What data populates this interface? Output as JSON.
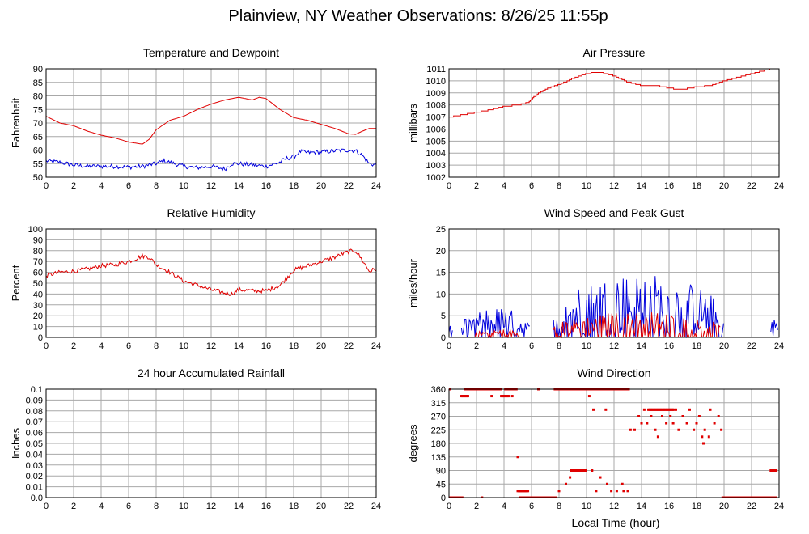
{
  "title": "Plainview, NY Weather Observations: 8/26/25 11:55p",
  "x_label": "Local Time (hour)",
  "chart_data": [
    {
      "type": "line",
      "title": "Temperature and Dewpoint",
      "ylabel": "Fahrenheit",
      "xlim": [
        0,
        24
      ],
      "ylim": [
        50,
        90
      ],
      "x_ticks": [
        "0",
        "2",
        "4",
        "6",
        "8",
        "10",
        "12",
        "14",
        "16",
        "18",
        "20",
        "22",
        "24"
      ],
      "y_ticks": [
        "50",
        "55",
        "60",
        "65",
        "70",
        "75",
        "80",
        "85",
        "90"
      ],
      "grid": true,
      "series": [
        {
          "color": "#e00000",
          "x": [
            0,
            1,
            2,
            3,
            4,
            5,
            6,
            7,
            7.5,
            8,
            9,
            10,
            11,
            12,
            13,
            13.5,
            14,
            14.5,
            15,
            15.5,
            16,
            16.5,
            17,
            18,
            19,
            20,
            21,
            22,
            22.5,
            23,
            23.5,
            24
          ],
          "y": [
            72.5,
            70,
            69,
            67,
            65.5,
            64.5,
            63,
            62.2,
            64,
            67.5,
            71,
            72.5,
            75,
            77,
            78.5,
            79,
            79.5,
            79,
            78.5,
            79.5,
            79,
            77,
            75,
            72,
            71,
            69.5,
            68,
            66,
            65.8,
            67,
            68,
            68
          ]
        },
        {
          "color": "#0000dd",
          "x": [
            0,
            1,
            2,
            3,
            4,
            5,
            6,
            7,
            8,
            8.5,
            9,
            10,
            11,
            12,
            13,
            13.5,
            14,
            15,
            16,
            17,
            17.5,
            18,
            18.5,
            19,
            20,
            21,
            22,
            22.5,
            23,
            23.5,
            24
          ],
          "y": [
            56,
            55.5,
            54.5,
            54,
            54,
            54,
            53.7,
            54,
            55,
            56,
            55.5,
            54,
            53.5,
            54,
            53,
            55,
            55,
            54.5,
            54,
            55.5,
            57,
            57.5,
            59.5,
            59,
            59.3,
            59.7,
            60,
            59.8,
            58,
            55,
            54.5
          ],
          "noise": 0.8
        }
      ]
    },
    {
      "type": "line",
      "title": "Air Pressure",
      "ylabel": "millibars",
      "xlim": [
        0,
        24
      ],
      "ylim": [
        1002,
        1011
      ],
      "x_ticks": [
        "0",
        "2",
        "4",
        "6",
        "8",
        "10",
        "12",
        "14",
        "16",
        "18",
        "20",
        "22",
        "24"
      ],
      "y_ticks": [
        "1002",
        "1003",
        "1004",
        "1005",
        "1006",
        "1007",
        "1008",
        "1009",
        "1010",
        "1011"
      ],
      "grid": true,
      "series": [
        {
          "color": "#e00000",
          "step": true,
          "x": [
            0,
            1,
            2,
            3,
            4,
            5,
            5.7,
            6,
            6.5,
            7,
            8,
            9,
            10,
            10.5,
            11,
            12,
            13,
            14,
            15,
            16,
            16.5,
            17,
            18,
            19,
            20,
            21,
            22,
            23,
            23.5,
            24
          ],
          "y": [
            1007,
            1007.2,
            1007.4,
            1007.6,
            1007.9,
            1008,
            1008.2,
            1008.5,
            1009,
            1009.3,
            1009.7,
            1010.2,
            1010.6,
            1010.7,
            1010.7,
            1010.4,
            1009.9,
            1009.6,
            1009.6,
            1009.4,
            1009.3,
            1009.3,
            1009.5,
            1009.6,
            1010,
            1010.3,
            1010.6,
            1010.9,
            1011,
            1011
          ]
        }
      ]
    },
    {
      "type": "line",
      "title": "Relative Humidity",
      "ylabel": "Percent",
      "xlim": [
        0,
        24
      ],
      "ylim": [
        0,
        100
      ],
      "x_ticks": [
        "0",
        "2",
        "4",
        "6",
        "8",
        "10",
        "12",
        "14",
        "16",
        "18",
        "20",
        "22",
        "24"
      ],
      "y_ticks": [
        "0",
        "10",
        "20",
        "30",
        "40",
        "50",
        "60",
        "70",
        "80",
        "90",
        "100"
      ],
      "grid": true,
      "series": [
        {
          "color": "#e00000",
          "x": [
            0,
            1,
            2,
            3,
            4,
            5,
            6,
            7,
            7.5,
            8,
            9,
            10,
            11,
            12,
            13,
            13.5,
            14,
            15,
            16,
            17,
            17.5,
            18,
            19,
            20,
            21,
            22,
            22.5,
            23,
            23.5,
            24
          ],
          "y": [
            57,
            60,
            61,
            63,
            66,
            67,
            70,
            75,
            74,
            67,
            60,
            52,
            48,
            44,
            41,
            40,
            44,
            43,
            43,
            48,
            55,
            62,
            66,
            70,
            74,
            79,
            80,
            71,
            61,
            63
          ],
          "noise": 2
        }
      ]
    },
    {
      "type": "line",
      "title": "Wind Speed and Peak Gust",
      "ylabel": "miles/hour",
      "xlim": [
        0,
        24
      ],
      "ylim": [
        0,
        25
      ],
      "x_ticks": [
        "0",
        "2",
        "4",
        "6",
        "8",
        "10",
        "12",
        "14",
        "16",
        "18",
        "20",
        "22",
        "24"
      ],
      "y_ticks": [
        "0",
        "5",
        "10",
        "15",
        "20",
        "25"
      ],
      "grid": true,
      "series": [
        {
          "color": "#0000dd",
          "random_spikes": true,
          "segments": [
            {
              "x": [
                0,
                0.3
              ],
              "peak": 4
            },
            {
              "x": [
                0.9,
                5.9
              ],
              "peak": 7
            },
            {
              "x": [
                7.6,
                20
              ],
              "peak": 15
            },
            {
              "x": [
                23.4,
                23.9
              ],
              "peak": 6
            }
          ]
        },
        {
          "color": "#e00000",
          "random_spikes": true,
          "segments": [
            {
              "x": [
                1.8,
                5.2
              ],
              "peak": 2
            },
            {
              "x": [
                7.6,
                19.8
              ],
              "peak": 6
            }
          ]
        }
      ]
    },
    {
      "type": "line",
      "title": "24 hour Accumulated Rainfall",
      "ylabel": "Inches",
      "xlim": [
        0,
        24
      ],
      "ylim": [
        0,
        0.1
      ],
      "x_ticks": [
        "0",
        "2",
        "4",
        "6",
        "8",
        "10",
        "12",
        "14",
        "16",
        "18",
        "20",
        "22",
        "24"
      ],
      "y_ticks": [
        "0.0",
        "0.01",
        "0.02",
        "0.03",
        "0.04",
        "0.05",
        "0.06",
        "0.07",
        "0.08",
        "0.09",
        "0.1"
      ],
      "grid": true,
      "series": [
        {
          "color": "#e00000",
          "x": [
            0,
            24
          ],
          "y": [
            0,
            0
          ]
        }
      ]
    },
    {
      "type": "scatter",
      "title": "Wind Direction",
      "ylabel": "degrees",
      "xlim": [
        0,
        24
      ],
      "ylim": [
        0,
        360
      ],
      "x_ticks": [
        "0",
        "2",
        "4",
        "6",
        "8",
        "10",
        "12",
        "14",
        "16",
        "18",
        "20",
        "22",
        "24"
      ],
      "y_ticks": [
        "0",
        "45",
        "90",
        "135",
        "180",
        "225",
        "270",
        "315",
        "360"
      ],
      "grid": true,
      "series": [
        {
          "color": "#e00000",
          "runs": [
            {
              "x": [
                0,
                1
              ],
              "y": 0
            },
            {
              "x": [
                0.9,
                1.4
              ],
              "y": 337
            },
            {
              "x": [
                1.2,
                3.8
              ],
              "y": 360
            },
            {
              "x": [
                3.8,
                4.4
              ],
              "y": 337
            },
            {
              "x": [
                4.1,
                4.8
              ],
              "y": 360
            },
            {
              "x": [
                5.1,
                5.8
              ],
              "y": 22
            },
            {
              "x": [
                5.2,
                7.8
              ],
              "y": 0
            },
            {
              "x": [
                7.7,
                11.6
              ],
              "y": 360
            },
            {
              "x": [
                8.9,
                10
              ],
              "y": 90
            },
            {
              "x": [
                11.7,
                13.1
              ],
              "y": 360
            },
            {
              "x": [
                14.5,
                16.4
              ],
              "y": 292
            },
            {
              "x": [
                19.9,
                23.8
              ],
              "y": 0
            },
            {
              "x": [
                23.4,
                23.8
              ],
              "y": 90
            }
          ],
          "points": [
            [
              0.05,
              360
            ],
            [
              2.4,
              0
            ],
            [
              3.1,
              337
            ],
            [
              4.6,
              337
            ],
            [
              4.9,
              360
            ],
            [
              5,
              135
            ],
            [
              5,
              22
            ],
            [
              5.6,
              0
            ],
            [
              6.5,
              360
            ],
            [
              8,
              22
            ],
            [
              8.5,
              45
            ],
            [
              8.8,
              67
            ],
            [
              9.3,
              90
            ],
            [
              10.2,
              337
            ],
            [
              10.4,
              90
            ],
            [
              10.5,
              292
            ],
            [
              10.7,
              22
            ],
            [
              11,
              67
            ],
            [
              11.2,
              360
            ],
            [
              11.4,
              292
            ],
            [
              11.5,
              45
            ],
            [
              11.8,
              22
            ],
            [
              12.2,
              22
            ],
            [
              12.4,
              360
            ],
            [
              12.6,
              45
            ],
            [
              12.7,
              22
            ],
            [
              13,
              22
            ],
            [
              13.2,
              225
            ],
            [
              13.5,
              225
            ],
            [
              13.8,
              270
            ],
            [
              14,
              247
            ],
            [
              14.2,
              292
            ],
            [
              14.4,
              247
            ],
            [
              14.7,
              270
            ],
            [
              15,
              225
            ],
            [
              15.2,
              202
            ],
            [
              15.5,
              270
            ],
            [
              15.8,
              247
            ],
            [
              16.1,
              270
            ],
            [
              16.3,
              247
            ],
            [
              16.5,
              292
            ],
            [
              16.7,
              225
            ],
            [
              17,
              270
            ],
            [
              17.3,
              247
            ],
            [
              17.5,
              292
            ],
            [
              17.8,
              225
            ],
            [
              18,
              247
            ],
            [
              18.2,
              270
            ],
            [
              18.4,
              202
            ],
            [
              18.5,
              180
            ],
            [
              18.6,
              225
            ],
            [
              18.9,
              202
            ],
            [
              19,
              292
            ],
            [
              19.3,
              247
            ],
            [
              19.6,
              270
            ],
            [
              19.8,
              225
            ]
          ]
        }
      ]
    }
  ]
}
